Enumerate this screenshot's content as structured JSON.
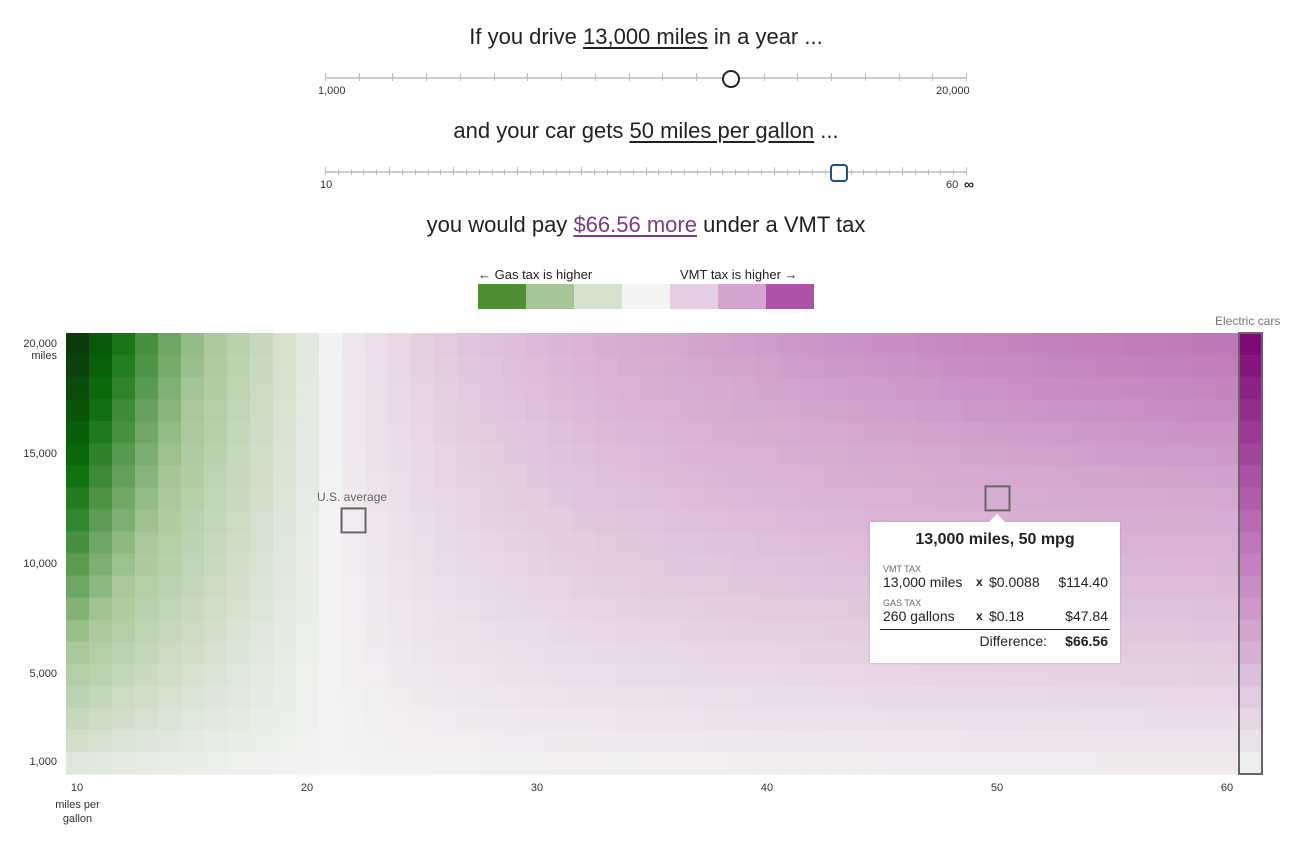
{
  "intro": {
    "drive_prefix": "If you drive",
    "miles_value": "13,000 miles",
    "drive_suffix": "in a year ...",
    "miles_min": "1,000",
    "miles_max": "20,000",
    "mpg_prefix": "and your car gets",
    "mpg_value": "50 miles per gallon",
    "mpg_suffix": "...",
    "mpg_min": "10",
    "mpg_max": "60",
    "mpg_inf": "∞",
    "pay_prefix": "you would pay",
    "pay_value": "$66.56 more",
    "pay_suffix": "under a VMT tax"
  },
  "sliders": {
    "miles": {
      "min": 1000,
      "max": 20000,
      "value": 13000
    },
    "mpg": {
      "min": 10,
      "max": 60,
      "value": 50
    }
  },
  "legend": {
    "left_label": "← Gas tax is higher",
    "right_label": "VMT tax is higher →",
    "colors": [
      "#4e8f34",
      "#a7c697",
      "#d3e1cd",
      "#f4f4f4",
      "#e5cde3",
      "#d4a6cf",
      "#ad52a6"
    ]
  },
  "annotations": {
    "electric_cars": "Electric cars",
    "us_average": "U.S. average"
  },
  "tooltip": {
    "title": "13,000 miles, 50 mpg",
    "vmt_caption": "VMT TAX",
    "vmt_qty": "13,000 miles",
    "vmt_x": "x",
    "vmt_rate": "$0.0088",
    "vmt_total": "$114.40",
    "gas_caption": "GAS TAX",
    "gas_qty": "260 gallons",
    "gas_x": "x",
    "gas_rate": "$0.18",
    "gas_total": "$47.84",
    "diff_label": "Difference:",
    "diff_value": "$66.56"
  },
  "chart_data": {
    "type": "heatmap",
    "x": {
      "min": 10,
      "max": 60,
      "tick_labels": [
        "10",
        "20",
        "30",
        "40",
        "50",
        "60"
      ],
      "label": "miles per gallon"
    },
    "y": {
      "min": 1000,
      "max": 20000,
      "tick_labels": [
        "20,000",
        "15,000",
        "10,000",
        "5,000",
        "1,000"
      ],
      "label": "miles"
    },
    "vmt_rate_per_mile": 0.0088,
    "gas_tax_per_gallon": 0.184,
    "value": "VMT tax minus gas tax, dollars per year",
    "highlight": {
      "miles": 13000,
      "mpg": 50
    },
    "us_average": {
      "miles": 12000,
      "mpg": 22
    },
    "electric_column": true
  },
  "colors": {
    "green_dark": "#0b3a0b",
    "green_mid": "#0a6e0a",
    "neutral": "#f4f4f4",
    "purple_dark": "#7e0a76",
    "money_text": "#7b3a8a"
  }
}
